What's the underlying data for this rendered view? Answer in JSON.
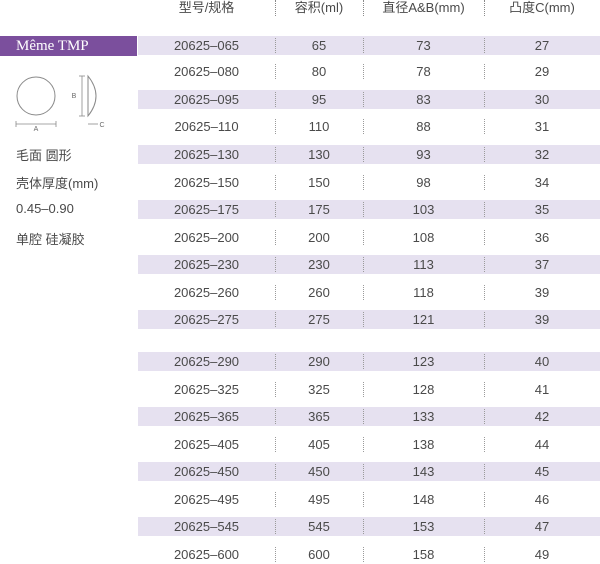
{
  "header": {
    "model": "型号/规格",
    "volume": "容积(ml)",
    "diameter": "直径A&B(mm)",
    "projection": "凸度C(mm)"
  },
  "brand": "Même TMP",
  "diagram": {
    "label_a": "A",
    "label_b": "B",
    "label_c": "C"
  },
  "specs": {
    "surface": "毛面 圆形",
    "shell_label": "壳体厚度(mm)",
    "shell_value": "0.45–0.90",
    "cavity": "单腔 硅凝胶"
  },
  "rows": [
    {
      "model": "20625–065",
      "volume": "65",
      "diameter": "73",
      "projection": "27"
    },
    {
      "model": "20625–080",
      "volume": "80",
      "diameter": "78",
      "projection": "29"
    },
    {
      "model": "20625–095",
      "volume": "95",
      "diameter": "83",
      "projection": "30"
    },
    {
      "model": "20625–110",
      "volume": "110",
      "diameter": "88",
      "projection": "31"
    },
    {
      "model": "20625–130",
      "volume": "130",
      "diameter": "93",
      "projection": "32"
    },
    {
      "model": "20625–150",
      "volume": "150",
      "diameter": "98",
      "projection": "34"
    },
    {
      "model": "20625–175",
      "volume": "175",
      "diameter": "103",
      "projection": "35"
    },
    {
      "model": "20625–200",
      "volume": "200",
      "diameter": "108",
      "projection": "36"
    },
    {
      "model": "20625–230",
      "volume": "230",
      "diameter": "113",
      "projection": "37"
    },
    {
      "model": "20625–260",
      "volume": "260",
      "diameter": "118",
      "projection": "39"
    },
    {
      "model": "20625–275",
      "volume": "275",
      "diameter": "121",
      "projection": "39"
    },
    {
      "model": "20625–290",
      "volume": "290",
      "diameter": "123",
      "projection": "40"
    },
    {
      "model": "20625–325",
      "volume": "325",
      "diameter": "128",
      "projection": "41"
    },
    {
      "model": "20625–365",
      "volume": "365",
      "diameter": "133",
      "projection": "42"
    },
    {
      "model": "20625–405",
      "volume": "405",
      "diameter": "138",
      "projection": "44"
    },
    {
      "model": "20625–450",
      "volume": "450",
      "diameter": "143",
      "projection": "45"
    },
    {
      "model": "20625–495",
      "volume": "495",
      "diameter": "148",
      "projection": "46"
    },
    {
      "model": "20625–545",
      "volume": "545",
      "diameter": "153",
      "projection": "47"
    },
    {
      "model": "20625–600",
      "volume": "600",
      "diameter": "158",
      "projection": "49"
    }
  ],
  "colors": {
    "brand_bg": "#7b4f9d",
    "row_shade": "#e6e1f0",
    "text": "#4a4a4a"
  }
}
